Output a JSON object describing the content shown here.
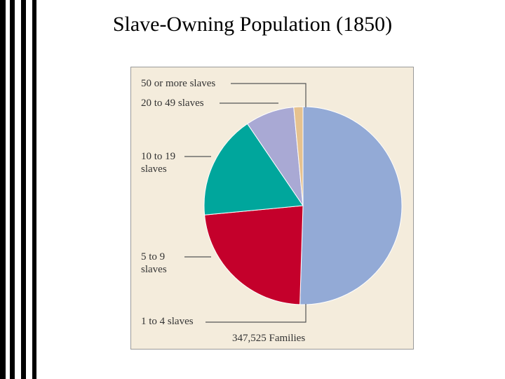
{
  "chart_data": {
    "type": "pie",
    "title": "Slave-Owning Population (1850)",
    "categories": [
      "1 to 4 slaves",
      "5 to 9 slaves",
      "10 to 19 slaves",
      "20 to 49 slaves",
      "50 or more slaves"
    ],
    "values": [
      50.5,
      23,
      17,
      8,
      1.5
    ],
    "colors": [
      "#93aad6",
      "#c4002b",
      "#00a69c",
      "#a9a9d4",
      "#e6c28f"
    ],
    "note": "347,525 Families"
  }
}
